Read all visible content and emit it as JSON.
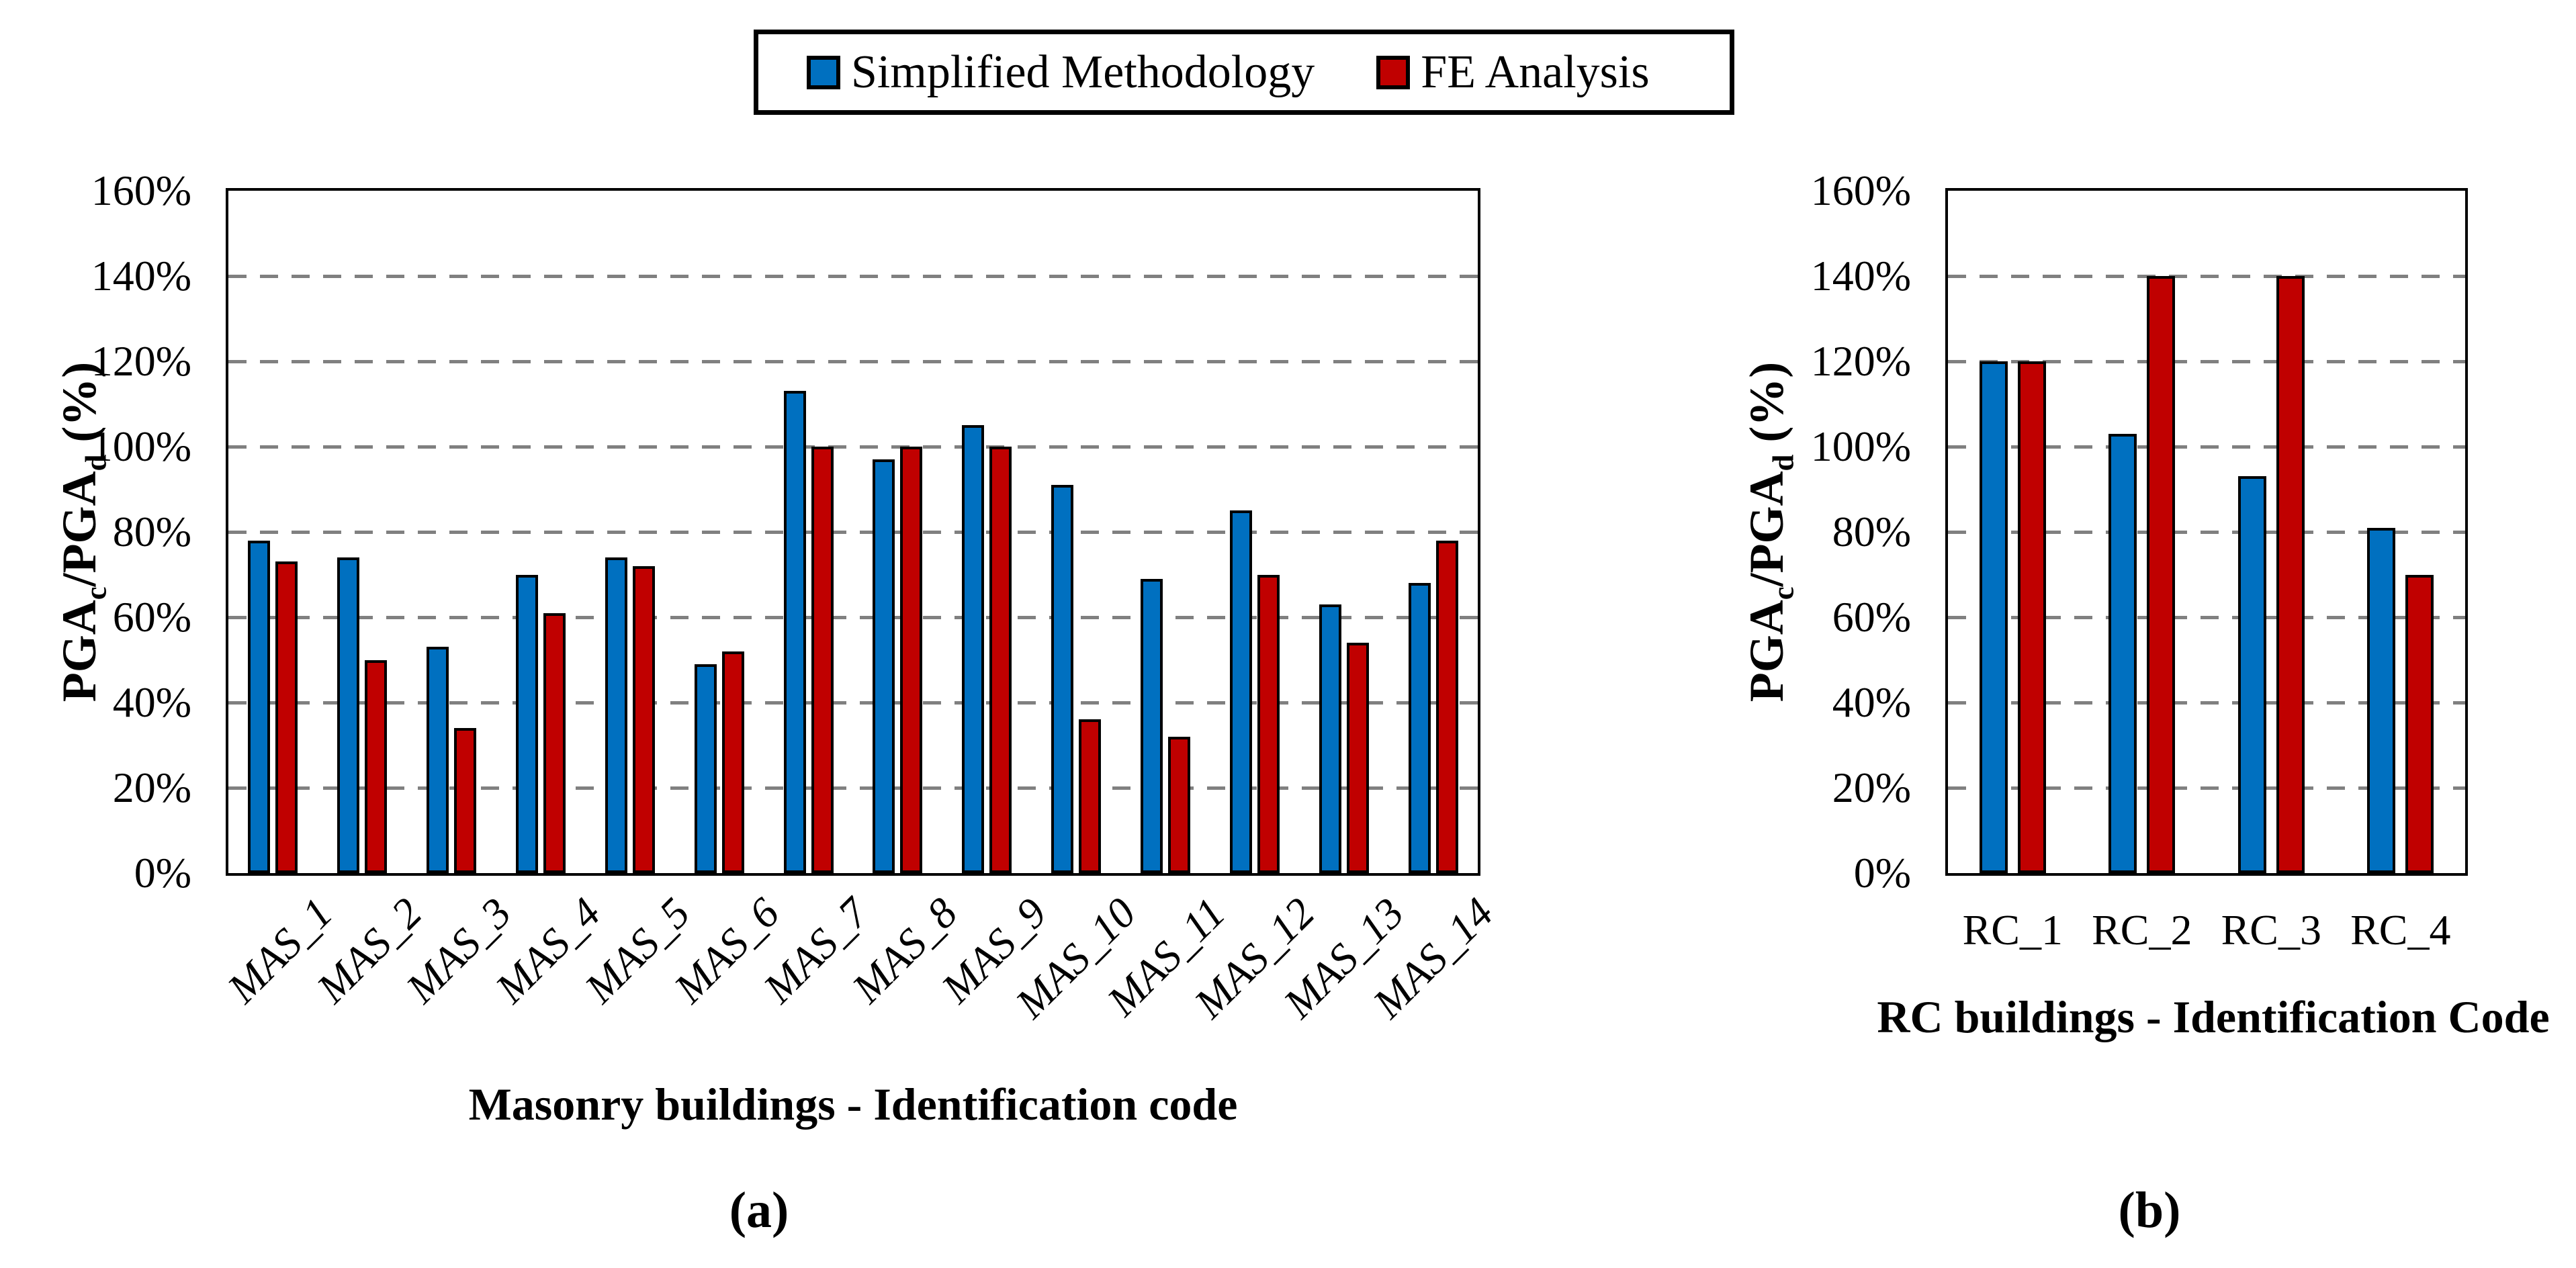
{
  "legend": {
    "items": [
      {
        "label": "Simplified Methodology",
        "color": "#0070C0"
      },
      {
        "label": "FE Analysis",
        "color": "#C00000"
      }
    ],
    "border_color": "#000000",
    "position": "top-center"
  },
  "figure": {
    "captions": [
      "(a)",
      "(b)"
    ]
  },
  "colors": {
    "simplified": "#0070C0",
    "fe_analysis": "#C00000",
    "bar_outline": "#000000",
    "gridline": "#808080",
    "background": "#ffffff"
  },
  "chart_data": [
    {
      "type": "bar",
      "title": "",
      "xlabel": "Masonry buildings - Identification code",
      "ylabel": "PGAc/PGAd (%)",
      "ylabel_parts": {
        "seg1": "PGA",
        "sub1": "c",
        "seg2": "/PGA",
        "sub2": "d",
        "seg3": " (%)"
      },
      "categories": [
        "MAS_1",
        "MAS_2",
        "MAS_3",
        "MAS_4",
        "MAS_5",
        "MAS_6",
        "MAS_7",
        "MAS_8",
        "MAS_9",
        "MAS_10",
        "MAS_11",
        "MAS_12",
        "MAS_13",
        "MAS_14"
      ],
      "series": [
        {
          "name": "Simplified Methodology",
          "color": "#0070C0",
          "values": [
            78,
            74,
            53,
            70,
            74,
            49,
            113,
            97,
            105,
            91,
            69,
            85,
            63,
            68
          ]
        },
        {
          "name": "FE Analysis",
          "color": "#C00000",
          "values": [
            73,
            50,
            34,
            61,
            72,
            52,
            100,
            100,
            100,
            36,
            32,
            70,
            54,
            78
          ]
        }
      ],
      "ylim": [
        0,
        160
      ],
      "ytick_step": 20,
      "yticks": [
        "0%",
        "20%",
        "40%",
        "60%",
        "80%",
        "100%",
        "120%",
        "140%",
        "160%"
      ],
      "grid": "dashed-horizontal",
      "xtick_rotation": 45,
      "legend_position": "shared-top"
    },
    {
      "type": "bar",
      "title": "",
      "xlabel": "RC buildings - Identification Code",
      "ylabel": "PGAc/PGAd (%)",
      "ylabel_parts": {
        "seg1": "PGA",
        "sub1": "c",
        "seg2": "/PGA",
        "sub2": "d",
        "seg3": " (%)"
      },
      "categories": [
        "RC_1",
        "RC_2",
        "RC_3",
        "RC_4"
      ],
      "series": [
        {
          "name": "Simplified Methodology",
          "color": "#0070C0",
          "values": [
            120,
            103,
            93,
            81
          ]
        },
        {
          "name": "FE Analysis",
          "color": "#C00000",
          "values": [
            120,
            140,
            140,
            70
          ]
        }
      ],
      "ylim": [
        0,
        160
      ],
      "ytick_step": 20,
      "yticks": [
        "0%",
        "20%",
        "40%",
        "60%",
        "80%",
        "100%",
        "120%",
        "140%",
        "160%"
      ],
      "grid": "dashed-horizontal",
      "xtick_rotation": 0,
      "legend_position": "shared-top"
    }
  ]
}
